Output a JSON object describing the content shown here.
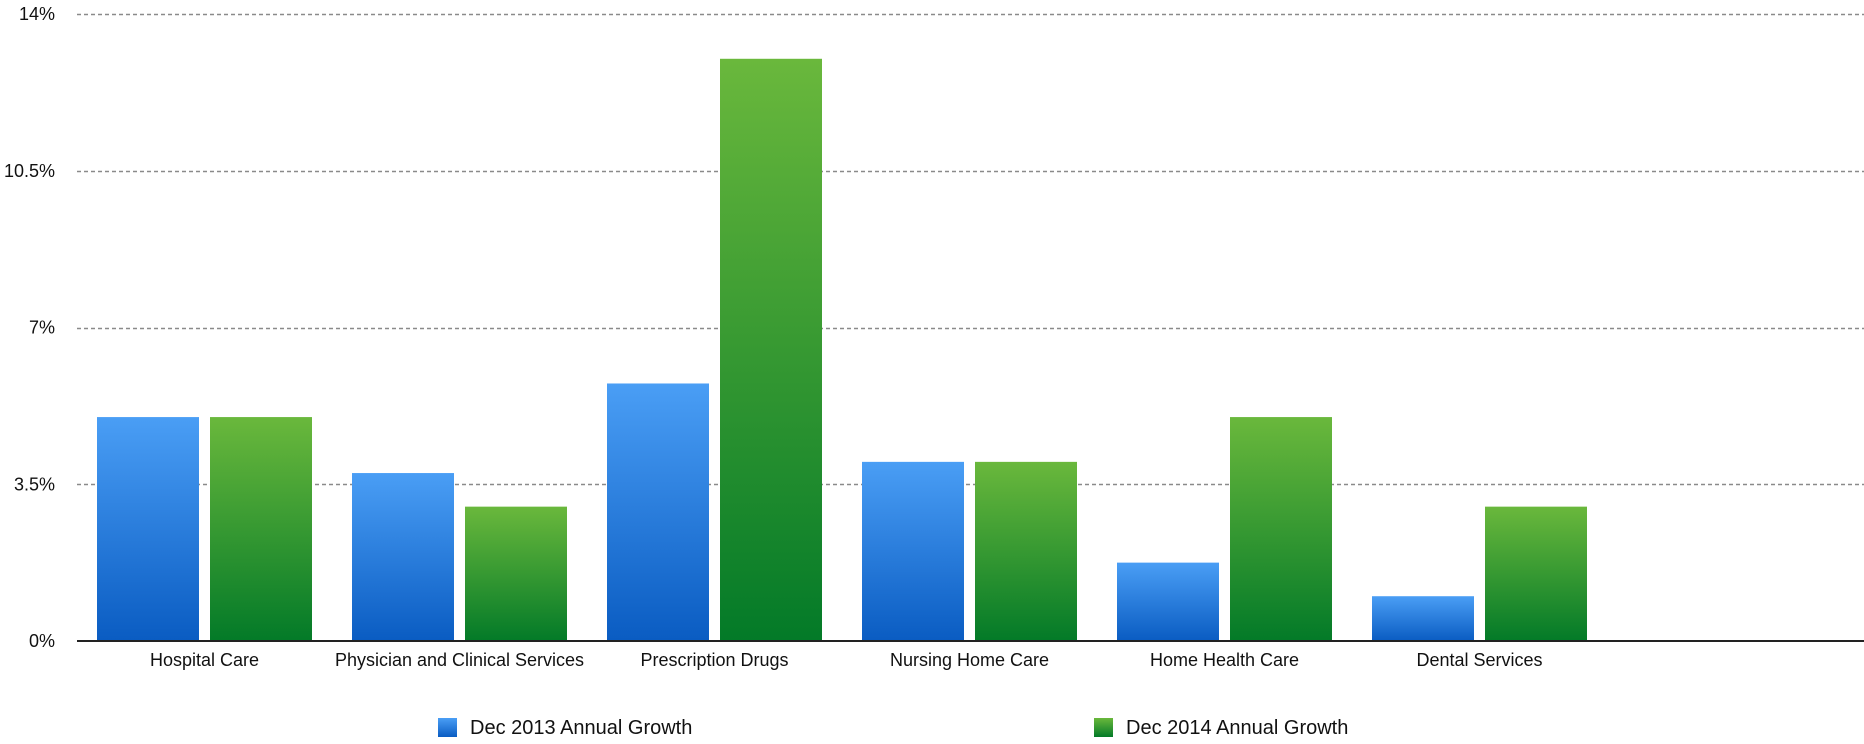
{
  "chart_data": {
    "type": "bar",
    "title": "",
    "xlabel": "",
    "ylabel": "",
    "categories": [
      "Hospital Care",
      "Physician and Clinical Services",
      "Prescription Drugs",
      "Nursing Home Care",
      "Home Health Care",
      "Dental Services"
    ],
    "series": [
      {
        "name": "Dec 2013 Annual Growth",
        "color_top": "#4a9ef5",
        "color_bottom": "#0a5cc2",
        "values": [
          5.0,
          3.75,
          5.75,
          4.0,
          1.75,
          1.0
        ]
      },
      {
        "name": "Dec 2014 Annual Growth",
        "color_top": "#6ab83c",
        "color_bottom": "#037a28",
        "values": [
          5.0,
          3.0,
          13.0,
          4.0,
          5.0,
          3.0
        ]
      }
    ],
    "ylim": [
      0,
      14
    ],
    "y_ticks": [
      0,
      3.5,
      7,
      10.5,
      14
    ],
    "y_tick_labels": [
      "0%",
      "3.5%",
      "7%",
      "10.5%",
      "14%"
    ],
    "grid": true,
    "legend_position": "bottom"
  }
}
